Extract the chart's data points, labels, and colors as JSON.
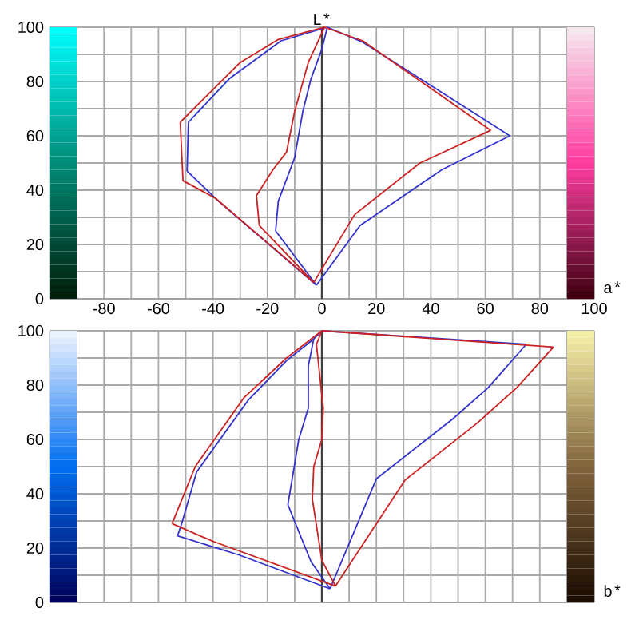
{
  "chart_data": [
    {
      "type": "line",
      "ylabel": "L*",
      "xlabel": "a*",
      "xlim": [
        -100,
        100
      ],
      "ylim": [
        0,
        100
      ],
      "xticks": [
        {
          "value": -90,
          "label": null
        },
        -80,
        {
          "value": -70,
          "label": null
        },
        -60,
        {
          "value": -50,
          "label": null
        },
        -40,
        {
          "value": -30,
          "label": null
        },
        -20,
        {
          "value": -10,
          "label": null
        },
        0,
        {
          "value": 10,
          "label": null
        },
        20,
        {
          "value": 30,
          "label": null
        },
        40,
        {
          "value": 50,
          "label": null
        },
        60,
        {
          "value": 70,
          "label": null
        },
        80,
        {
          "value": 90,
          "label": null
        },
        100
      ],
      "yticks": [
        0,
        {
          "value": 10,
          "label": null
        },
        20,
        {
          "value": 30,
          "label": null
        },
        40,
        {
          "value": 50,
          "label": null
        },
        60,
        {
          "value": 70,
          "label": null
        },
        80,
        {
          "value": 90,
          "label": null
        },
        100
      ],
      "grid": true,
      "marker": "none",
      "line_style": "solid",
      "ref_lines": [
        {
          "axis": "x",
          "value": 0,
          "color": "#404040"
        }
      ],
      "series": [
        {
          "color": "#3333cc",
          "x": [
            -49.5,
            -49,
            -34,
            -15,
            2
          ],
          "values": [
            47,
            65,
            81,
            95,
            100
          ]
        },
        {
          "color": "#3333cc",
          "x": [
            2,
            15,
            69
          ],
          "values": [
            100,
            94.5,
            60
          ]
        },
        {
          "color": "#3333cc",
          "x": [
            -2,
            14,
            44,
            69
          ],
          "values": [
            5,
            27,
            47.5,
            60
          ]
        },
        {
          "color": "#3333cc",
          "x": [
            -49.5,
            -38,
            -2
          ],
          "values": [
            47,
            36,
            5
          ]
        },
        {
          "color": "#3333cc",
          "x": [
            -17,
            -2
          ],
          "values": [
            25,
            5
          ]
        },
        {
          "color": "#3333cc",
          "x": [
            -17,
            -16,
            -10,
            -7,
            -4,
            0,
            2
          ],
          "values": [
            25,
            36,
            52,
            69,
            81,
            92,
            100
          ]
        },
        {
          "color": "#cc2222",
          "x": [
            -52,
            -30,
            -16,
            1
          ],
          "values": [
            65,
            87,
            95.5,
            100
          ]
        },
        {
          "color": "#cc2222",
          "x": [
            1,
            15,
            62
          ],
          "values": [
            100,
            95,
            62
          ]
        },
        {
          "color": "#cc2222",
          "x": [
            -3,
            12,
            36,
            62
          ],
          "values": [
            6,
            31,
            50,
            62
          ]
        },
        {
          "color": "#cc2222",
          "x": [
            -52,
            -51,
            -39,
            -3
          ],
          "values": [
            65,
            43.5,
            37,
            6
          ]
        },
        {
          "color": "#cc2222",
          "x": [
            -24,
            -23,
            -3
          ],
          "values": [
            38,
            27,
            6
          ]
        },
        {
          "color": "#cc2222",
          "x": [
            -24,
            -18,
            -13,
            -10,
            -5,
            1
          ],
          "values": [
            38,
            47.5,
            54,
            69,
            87,
            100
          ]
        }
      ]
    },
    {
      "type": "line",
      "xlabel": "b*",
      "xlim": [
        -100,
        100
      ],
      "ylim": [
        0,
        100
      ],
      "tick_labels": "y",
      "xticks": [
        {
          "value": -90,
          "label": null
        },
        -80,
        {
          "value": -70,
          "label": null
        },
        -60,
        {
          "value": -50,
          "label": null
        },
        -40,
        {
          "value": -30,
          "label": null
        },
        -20,
        {
          "value": -10,
          "label": null
        },
        0,
        {
          "value": 10,
          "label": null
        },
        20,
        {
          "value": 30,
          "label": null
        },
        40,
        {
          "value": 50,
          "label": null
        },
        60,
        {
          "value": 70,
          "label": null
        },
        80,
        {
          "value": 90,
          "label": null
        },
        100
      ],
      "yticks": [
        0,
        {
          "value": 10,
          "label": null
        },
        20,
        {
          "value": 30,
          "label": null
        },
        40,
        {
          "value": 50,
          "label": null
        },
        60,
        {
          "value": 70,
          "label": null
        },
        80,
        {
          "value": 90,
          "label": null
        },
        100
      ],
      "grid": true,
      "marker": "none",
      "line_style": "solid",
      "ref_lines": [
        {
          "axis": "x",
          "value": 0,
          "color": "#404040"
        }
      ],
      "series": [
        {
          "color": "#3333cc",
          "x": [
            0,
            75
          ],
          "values": [
            100,
            95
          ]
        },
        {
          "color": "#3333cc",
          "x": [
            3,
            20,
            48,
            61,
            75
          ],
          "values": [
            5,
            45.5,
            67.5,
            79,
            95
          ]
        },
        {
          "color": "#3333cc",
          "x": [
            -53,
            -30.5,
            3
          ],
          "values": [
            24.5,
            17.5,
            5
          ]
        },
        {
          "color": "#3333cc",
          "x": [
            -53,
            -51.5,
            -46,
            -27,
            -13,
            -3,
            0
          ],
          "values": [
            24.5,
            29,
            48,
            74.5,
            89,
            97,
            100
          ]
        },
        {
          "color": "#3333cc",
          "x": [
            -12.5,
            -4,
            3
          ],
          "values": [
            36,
            15,
            5
          ]
        },
        {
          "color": "#3333cc",
          "x": [
            -12.5,
            -8.5,
            -5,
            -5,
            -3
          ],
          "values": [
            36,
            60,
            71.5,
            87,
            97
          ]
        },
        {
          "color": "#cc2222",
          "x": [
            0,
            85
          ],
          "values": [
            100,
            94
          ]
        },
        {
          "color": "#cc2222",
          "x": [
            5,
            30.5,
            57,
            71.5,
            85
          ],
          "values": [
            6,
            45,
            66,
            79,
            94
          ]
        },
        {
          "color": "#cc2222",
          "x": [
            -55,
            -40,
            5
          ],
          "values": [
            29,
            22.5,
            6
          ]
        },
        {
          "color": "#cc2222",
          "x": [
            -55,
            -46.5,
            -28.5,
            -13,
            0
          ],
          "values": [
            29,
            50,
            75.5,
            90,
            100
          ]
        },
        {
          "color": "#cc2222",
          "x": [
            5,
            0,
            -3.5,
            -3,
            0,
            0.5,
            -2,
            0
          ],
          "values": [
            6,
            15.5,
            38,
            50,
            60,
            71.5,
            95,
            100
          ]
        }
      ]
    }
  ]
}
